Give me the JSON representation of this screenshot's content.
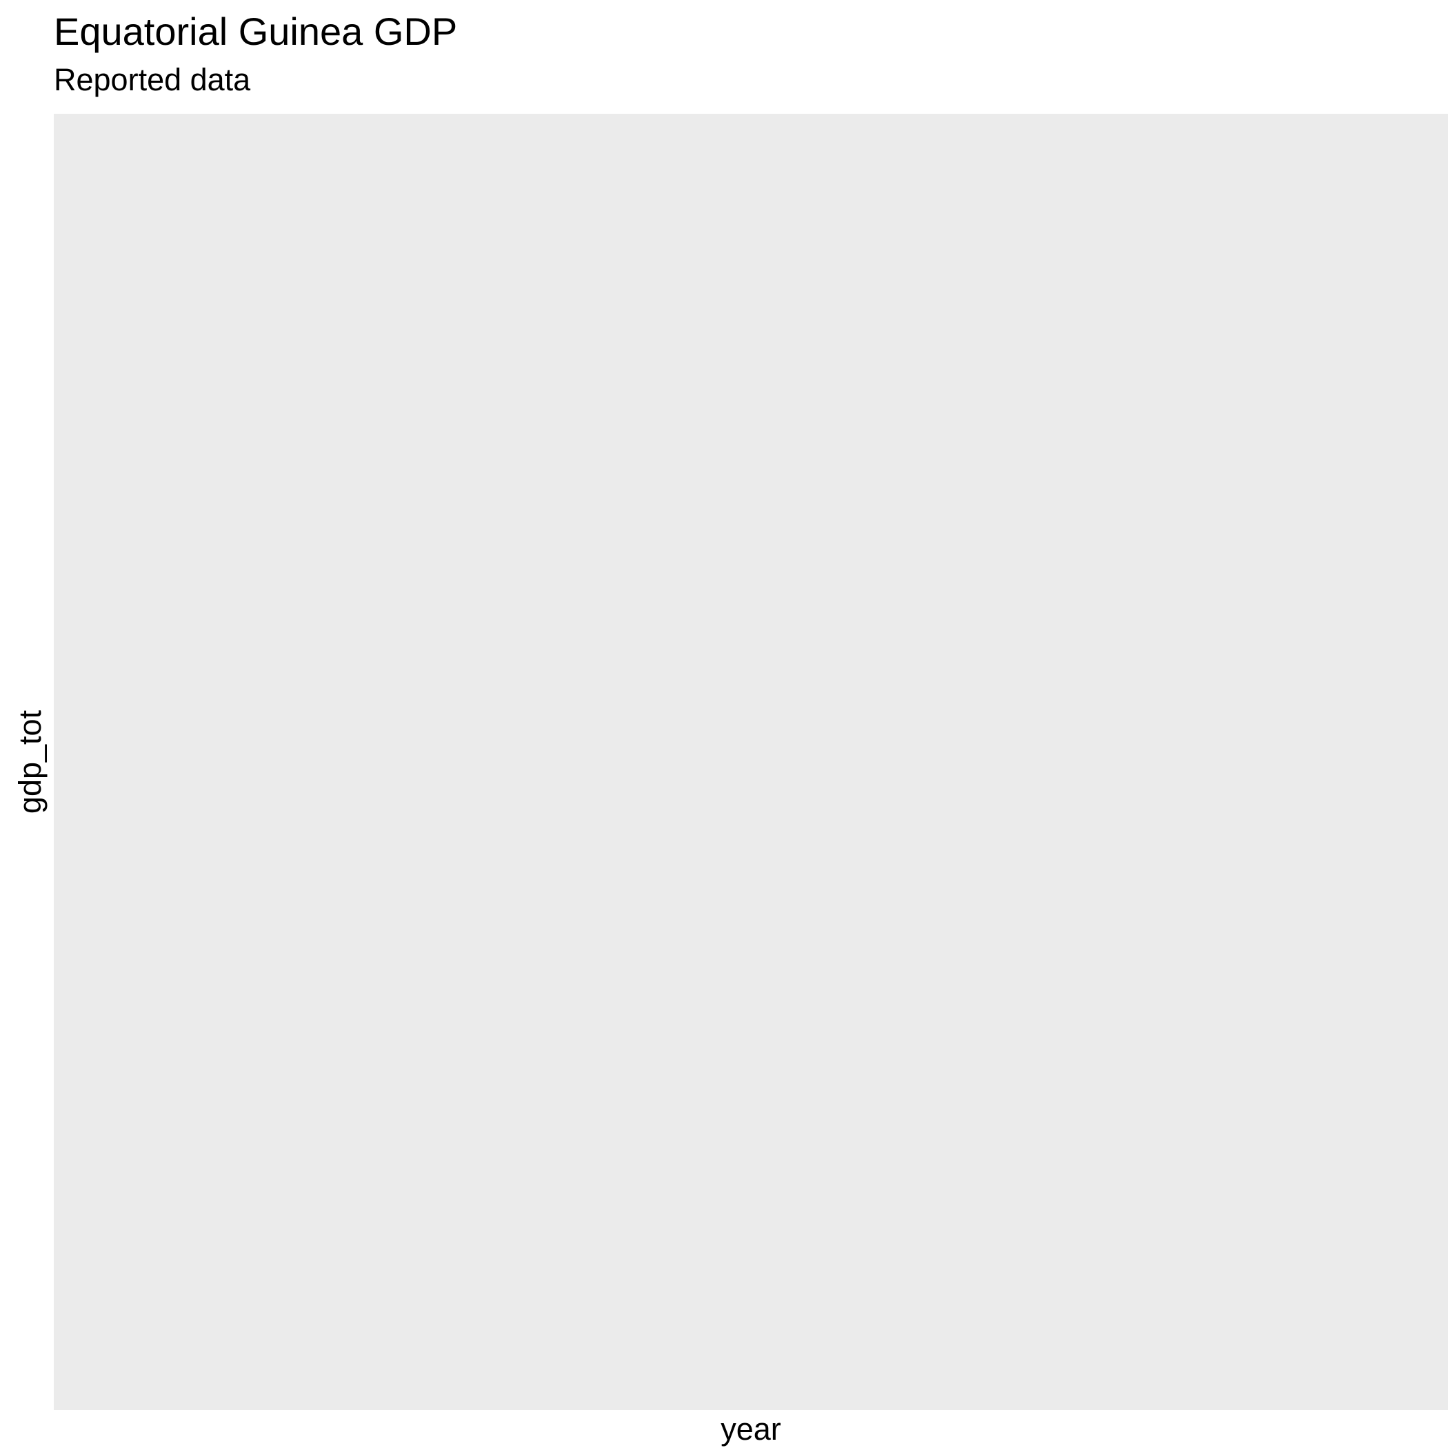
{
  "chart_data": {
    "type": "line",
    "title": "Equatorial Guinea GDP",
    "subtitle": "Reported data",
    "xlabel": "year",
    "ylabel": "gdp_tot",
    "x": [],
    "series": [],
    "grid": false,
    "legend": "none",
    "panel_color": "#ebebeb"
  }
}
